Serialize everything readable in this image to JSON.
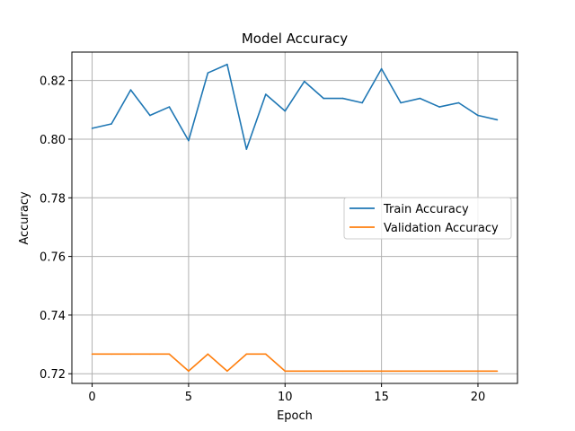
{
  "chart_data": {
    "type": "line",
    "title": "Model Accuracy",
    "xlabel": "Epoch",
    "ylabel": "Accuracy",
    "xlim": [
      -1.05,
      22.05
    ],
    "ylim": [
      0.7167,
      0.8297
    ],
    "xticks": [
      0,
      5,
      10,
      15,
      20
    ],
    "yticks": [
      0.72,
      0.74,
      0.76,
      0.78,
      0.8,
      0.82
    ],
    "grid": true,
    "legend_position": "center-right",
    "x": [
      0,
      1,
      2,
      3,
      4,
      5,
      6,
      7,
      8,
      9,
      10,
      11,
      12,
      13,
      14,
      15,
      16,
      17,
      18,
      19,
      20,
      21
    ],
    "series": [
      {
        "name": "Train Accuracy",
        "color": "#1f77b4",
        "values": [
          0.8037,
          0.8052,
          0.8168,
          0.8081,
          0.811,
          0.7995,
          0.8226,
          0.8255,
          0.7966,
          0.8153,
          0.8096,
          0.8197,
          0.8139,
          0.8139,
          0.8124,
          0.824,
          0.8124,
          0.8139,
          0.811,
          0.8124,
          0.8081,
          0.8066
        ]
      },
      {
        "name": "Validation Accuracy",
        "color": "#ff7f0e",
        "values": [
          0.7267,
          0.7267,
          0.7267,
          0.7267,
          0.7267,
          0.7209,
          0.7267,
          0.7209,
          0.7267,
          0.7267,
          0.7209,
          0.7209,
          0.7209,
          0.7209,
          0.7209,
          0.7209,
          0.7209,
          0.7209,
          0.7209,
          0.7209,
          0.7209,
          0.7209
        ]
      }
    ]
  }
}
